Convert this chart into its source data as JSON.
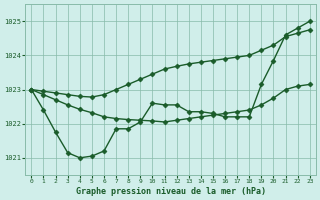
{
  "title": "Graphe pression niveau de la mer (hPa)",
  "bg_color": "#d0eeea",
  "grid_color": "#88bbaa",
  "line_color": "#1a5c2a",
  "marker": "D",
  "markersize": 2.5,
  "linewidth": 1.0,
  "xlim": [
    -0.5,
    23.5
  ],
  "ylim": [
    1020.5,
    1025.5
  ],
  "yticks": [
    1021,
    1022,
    1023,
    1024,
    1025
  ],
  "xticks": [
    0,
    1,
    2,
    3,
    4,
    5,
    6,
    7,
    8,
    9,
    10,
    11,
    12,
    13,
    14,
    15,
    16,
    17,
    18,
    19,
    20,
    21,
    22,
    23
  ],
  "series1_x": [
    0,
    1,
    2,
    3,
    4,
    5,
    6,
    7,
    8,
    9,
    10,
    11,
    12,
    13,
    14,
    15,
    16,
    17,
    18,
    19,
    20,
    21,
    22,
    23
  ],
  "series1_y": [
    1023.0,
    1022.85,
    1022.7,
    1022.55,
    1022.42,
    1022.32,
    1022.2,
    1022.15,
    1022.12,
    1022.1,
    1022.08,
    1022.05,
    1022.1,
    1022.15,
    1022.2,
    1022.25,
    1022.3,
    1022.35,
    1022.4,
    1022.55,
    1022.75,
    1023.0,
    1023.1,
    1023.15
  ],
  "series2_x": [
    0,
    1,
    2,
    3,
    4,
    5,
    6,
    7,
    8,
    9,
    10,
    11,
    12,
    13,
    14,
    15,
    16,
    17,
    18,
    19,
    20,
    21,
    22,
    23
  ],
  "series2_y": [
    1023.0,
    1022.95,
    1022.9,
    1022.85,
    1022.8,
    1022.78,
    1022.85,
    1023.0,
    1023.15,
    1023.3,
    1023.45,
    1023.6,
    1023.68,
    1023.75,
    1023.8,
    1023.85,
    1023.9,
    1023.95,
    1024.0,
    1024.15,
    1024.3,
    1024.55,
    1024.65,
    1024.75
  ],
  "series3_x": [
    0,
    1,
    2,
    3,
    4,
    5,
    6,
    7,
    8,
    9,
    10,
    11,
    12,
    13,
    14,
    15,
    16,
    17,
    18,
    19,
    20,
    21,
    22,
    23
  ],
  "series3_y": [
    1023.0,
    1022.4,
    1021.75,
    1021.15,
    1021.0,
    1021.05,
    1021.2,
    1021.85,
    1021.85,
    1022.05,
    1022.6,
    1022.55,
    1022.55,
    1022.35,
    1022.35,
    1022.3,
    1022.2,
    1022.2,
    1022.2,
    1023.15,
    1023.85,
    1024.6,
    1024.8,
    1025.0
  ]
}
